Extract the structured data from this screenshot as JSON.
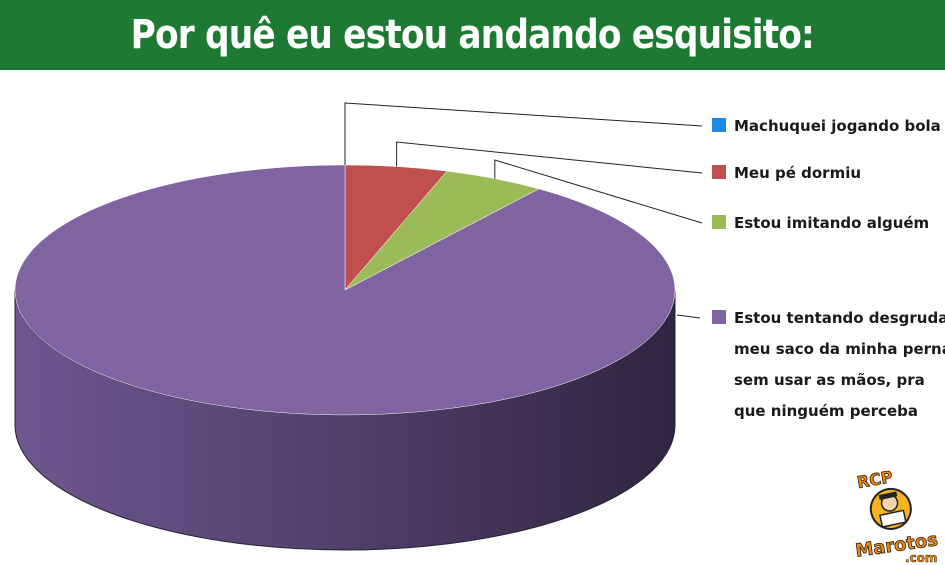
{
  "title": "Por quê eu estou andando esquisito:",
  "chart_data": {
    "type": "pie",
    "style": "3d",
    "legend_position": "right",
    "series": [
      {
        "label": "Machuquei jogando bola",
        "value": 0,
        "color": "#1e88e5"
      },
      {
        "label": "Meu pé dormiu",
        "value": 5,
        "color": "#c0504d"
      },
      {
        "label": "Estou imitando alguém",
        "value": 5,
        "color": "#9bbb59"
      },
      {
        "label": "Estou tentando desgrudar meu saco da minha perna sem usar as mãos, pra que ninguém perceba",
        "value": 90,
        "color": "#8064a2"
      }
    ]
  },
  "watermark": {
    "text_top": "RCP",
    "text_bottom": "Marotos",
    "text_suffix": ".com"
  }
}
